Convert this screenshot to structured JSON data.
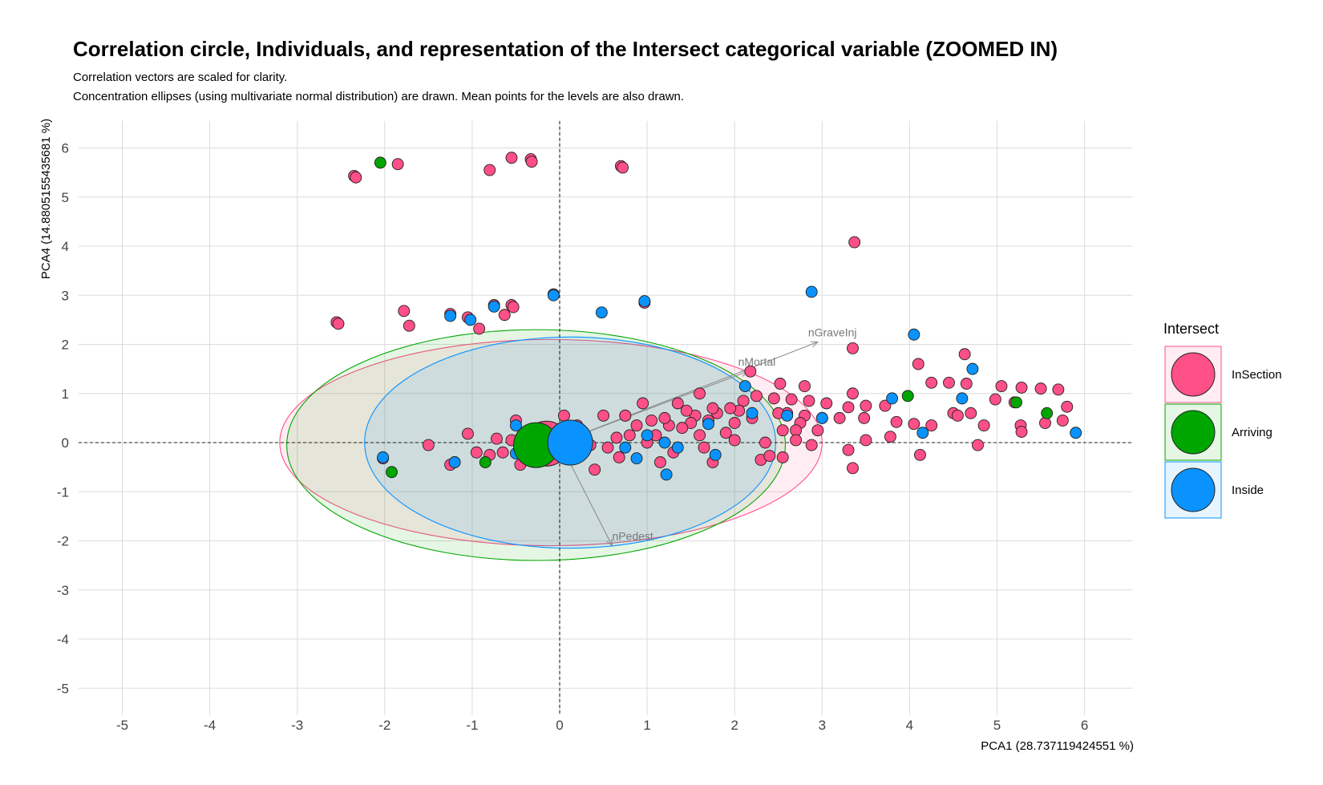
{
  "chart_data": {
    "type": "scatter",
    "title": "Correlation circle, Individuals, and representation of the Intersect categorical variable (ZOOMED IN)",
    "subtitle_lines": [
      "Correlation vectors are scaled for clarity.",
      "Concentration ellipses (using multivariate normal distribution) are drawn. Mean points for the levels are also drawn."
    ],
    "xlabel": "PCA1 (28.737119424551 %)",
    "ylabel": "PCA4 (14.880515543568​1 %)",
    "xlim": [
      -5.5,
      6.55
    ],
    "ylim": [
      -5.55,
      6.55
    ],
    "x_ticks": [
      -5,
      -4,
      -3,
      -2,
      -1,
      0,
      1,
      2,
      3,
      4,
      5,
      6
    ],
    "y_ticks": [
      -5,
      -4,
      -3,
      -2,
      -1,
      0,
      1,
      2,
      3,
      4,
      5,
      6
    ],
    "grid": true,
    "legend": {
      "title": "Intersect",
      "position": "right",
      "entries": [
        "InSection",
        "Arriving",
        "Inside"
      ]
    },
    "colors": {
      "InSection": "#ff4f87",
      "Arriving": "#00a600",
      "Inside": "#0a93ff"
    },
    "vectors": [
      {
        "name": "nGraveInj",
        "x": 2.95,
        "y": 2.05
      },
      {
        "name": "nMortal",
        "x": 2.15,
        "y": 1.45
      },
      {
        "name": "nPedest",
        "x": 0.6,
        "y": -2.1
      }
    ],
    "ellipses": [
      {
        "group": "InSection",
        "cx": -0.1,
        "cy": 0.0,
        "rx": 3.1,
        "ry": 2.1
      },
      {
        "group": "Arriving",
        "cx": -0.27,
        "cy": -0.05,
        "rx": 2.85,
        "ry": 2.35
      },
      {
        "group": "Inside",
        "cx": 0.12,
        "cy": 0.0,
        "rx": 2.35,
        "ry": 2.15
      }
    ],
    "means": [
      {
        "group": "InSection",
        "x": -0.15,
        "y": -0.02
      },
      {
        "group": "Arriving",
        "x": -0.27,
        "y": -0.05
      },
      {
        "group": "Inside",
        "x": 0.12,
        "y": 0.0
      }
    ],
    "series": [
      {
        "name": "InSection",
        "points": [
          [
            -2.35,
            5.43
          ],
          [
            -2.33,
            5.4
          ],
          [
            -1.85,
            5.67
          ],
          [
            -0.8,
            5.55
          ],
          [
            -0.55,
            5.8
          ],
          [
            -0.33,
            5.77
          ],
          [
            -0.32,
            5.72
          ],
          [
            0.7,
            5.63
          ],
          [
            0.72,
            5.6
          ],
          [
            3.37,
            4.08
          ],
          [
            -0.07,
            3.02
          ],
          [
            0.97,
            2.85
          ],
          [
            -2.55,
            2.45
          ],
          [
            -2.53,
            2.42
          ],
          [
            -1.78,
            2.68
          ],
          [
            -1.72,
            2.38
          ],
          [
            -1.25,
            2.62
          ],
          [
            -1.05,
            2.55
          ],
          [
            -0.92,
            2.32
          ],
          [
            -0.75,
            2.8
          ],
          [
            -0.63,
            2.6
          ],
          [
            -0.55,
            2.8
          ],
          [
            -0.53,
            2.76
          ],
          [
            3.35,
            1.92
          ],
          [
            2.18,
            1.45
          ],
          [
            4.1,
            1.6
          ],
          [
            4.63,
            1.8
          ],
          [
            2.52,
            1.2
          ],
          [
            2.8,
            1.15
          ],
          [
            3.35,
            1.0
          ],
          [
            4.25,
            1.22
          ],
          [
            4.45,
            1.22
          ],
          [
            4.65,
            1.2
          ],
          [
            5.05,
            1.15
          ],
          [
            5.28,
            1.12
          ],
          [
            5.5,
            1.1
          ],
          [
            5.7,
            1.08
          ],
          [
            5.8,
            0.73
          ],
          [
            5.55,
            0.4
          ],
          [
            5.75,
            0.45
          ],
          [
            5.27,
            0.35
          ],
          [
            5.28,
            0.22
          ],
          [
            5.2,
            0.82
          ],
          [
            4.98,
            0.88
          ],
          [
            4.85,
            0.35
          ],
          [
            4.7,
            0.6
          ],
          [
            4.5,
            0.6
          ],
          [
            4.55,
            0.55
          ],
          [
            4.25,
            0.35
          ],
          [
            4.05,
            0.38
          ],
          [
            3.85,
            0.42
          ],
          [
            3.78,
            0.12
          ],
          [
            3.72,
            0.75
          ],
          [
            3.5,
            0.75
          ],
          [
            3.48,
            0.5
          ],
          [
            3.5,
            0.05
          ],
          [
            3.3,
            0.72
          ],
          [
            3.2,
            0.5
          ],
          [
            3.05,
            0.8
          ],
          [
            3.0,
            0.5
          ],
          [
            2.95,
            0.25
          ],
          [
            2.85,
            0.85
          ],
          [
            2.8,
            0.55
          ],
          [
            2.75,
            0.4
          ],
          [
            2.7,
            0.25
          ],
          [
            2.65,
            0.88
          ],
          [
            2.6,
            0.6
          ],
          [
            2.55,
            0.25
          ],
          [
            2.5,
            0.6
          ],
          [
            2.45,
            0.9
          ],
          [
            2.35,
            0.0
          ],
          [
            2.3,
            -0.35
          ],
          [
            3.3,
            -0.15
          ],
          [
            3.35,
            -0.52
          ],
          [
            4.12,
            -0.25
          ],
          [
            4.78,
            -0.05
          ],
          [
            2.25,
            0.95
          ],
          [
            2.2,
            0.5
          ],
          [
            2.1,
            0.85
          ],
          [
            2.05,
            0.65
          ],
          [
            2.0,
            0.05
          ],
          [
            1.95,
            0.7
          ],
          [
            1.9,
            0.2
          ],
          [
            1.8,
            0.6
          ],
          [
            1.75,
            0.7
          ],
          [
            1.7,
            0.45
          ],
          [
            1.65,
            -0.1
          ],
          [
            1.6,
            0.15
          ],
          [
            1.55,
            0.55
          ],
          [
            1.5,
            0.4
          ],
          [
            1.45,
            0.65
          ],
          [
            1.4,
            0.3
          ],
          [
            1.35,
            0.8
          ],
          [
            1.3,
            -0.2
          ],
          [
            1.25,
            0.35
          ],
          [
            1.2,
            0.5
          ],
          [
            1.1,
            0.15
          ],
          [
            1.05,
            0.45
          ],
          [
            1.0,
            0.0
          ],
          [
            0.95,
            0.8
          ],
          [
            0.88,
            0.35
          ],
          [
            0.8,
            0.15
          ],
          [
            0.75,
            0.55
          ],
          [
            0.68,
            -0.3
          ],
          [
            0.65,
            0.1
          ],
          [
            0.55,
            -0.1
          ],
          [
            0.5,
            0.55
          ],
          [
            0.4,
            -0.55
          ],
          [
            0.35,
            -0.05
          ],
          [
            0.2,
            0.35
          ],
          [
            0.05,
            0.55
          ],
          [
            -0.05,
            0.15
          ],
          [
            -0.1,
            0.05
          ],
          [
            -0.15,
            -0.05
          ],
          [
            -0.25,
            0.25
          ],
          [
            -0.35,
            0.05
          ],
          [
            -0.45,
            -0.45
          ],
          [
            -0.55,
            0.05
          ],
          [
            -0.65,
            -0.2
          ],
          [
            -0.72,
            0.08
          ],
          [
            -0.8,
            -0.25
          ],
          [
            -0.95,
            -0.2
          ],
          [
            -1.05,
            0.18
          ],
          [
            -1.2,
            -0.4
          ],
          [
            -1.25,
            -0.45
          ],
          [
            -1.5,
            -0.05
          ],
          [
            -2.02,
            -0.32
          ],
          [
            1.6,
            1.0
          ],
          [
            2.0,
            0.4
          ],
          [
            2.55,
            -0.3
          ],
          [
            1.15,
            -0.4
          ],
          [
            2.88,
            -0.05
          ],
          [
            1.75,
            -0.4
          ],
          [
            2.4,
            -0.27
          ],
          [
            2.7,
            0.05
          ],
          [
            0.75,
            0.55
          ],
          [
            -0.5,
            0.45
          ],
          [
            -0.28,
            -0.05
          ],
          [
            0.1,
            -0.2
          ]
        ]
      },
      {
        "name": "Arriving",
        "points": [
          [
            -2.05,
            5.7
          ],
          [
            3.98,
            0.95
          ],
          [
            5.22,
            0.82
          ],
          [
            5.57,
            0.6
          ],
          [
            -1.92,
            -0.6
          ],
          [
            -0.85,
            -0.4
          ]
        ]
      },
      {
        "name": "Inside",
        "points": [
          [
            2.88,
            3.07
          ],
          [
            0.97,
            2.88
          ],
          [
            -0.07,
            3.0
          ],
          [
            4.05,
            2.2
          ],
          [
            0.48,
            2.65
          ],
          [
            -1.02,
            2.5
          ],
          [
            -1.25,
            2.58
          ],
          [
            -0.75,
            2.77
          ],
          [
            4.72,
            1.5
          ],
          [
            2.12,
            1.15
          ],
          [
            4.6,
            0.9
          ],
          [
            3.8,
            0.9
          ],
          [
            2.2,
            0.6
          ],
          [
            2.6,
            0.55
          ],
          [
            3.0,
            0.5
          ],
          [
            4.15,
            0.2
          ],
          [
            5.9,
            0.2
          ],
          [
            1.0,
            0.15
          ],
          [
            1.2,
            0.0
          ],
          [
            1.35,
            -0.1
          ],
          [
            1.78,
            -0.25
          ],
          [
            1.7,
            0.38
          ],
          [
            0.75,
            -0.1
          ],
          [
            0.88,
            -0.32
          ],
          [
            1.22,
            -0.65
          ],
          [
            -0.5,
            0.35
          ],
          [
            -0.5,
            -0.22
          ],
          [
            -1.2,
            -0.4
          ],
          [
            -2.02,
            -0.3
          ]
        ]
      }
    ]
  }
}
